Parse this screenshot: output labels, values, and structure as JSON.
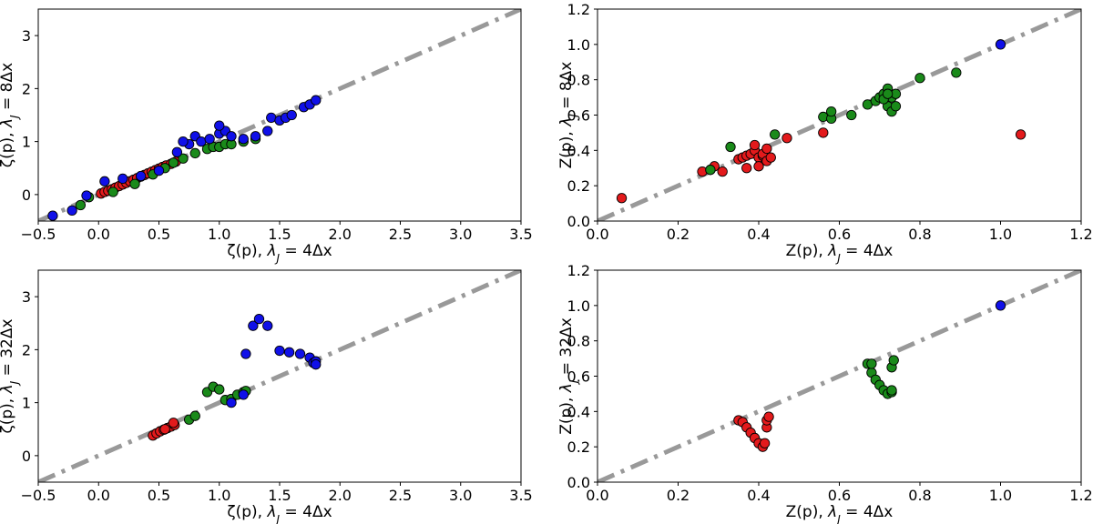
{
  "chart_data": [
    {
      "type": "scatter",
      "xlabel": "ζ(p), λJ = 4Δx",
      "ylabel": "ζ(p), λJ = 8Δx",
      "xlabel_parts": [
        "ζ(p), ",
        "λ",
        "J",
        " = 4Δx"
      ],
      "ylabel_parts": [
        "ζ(p), ",
        "λ",
        "J",
        " = 8Δx"
      ],
      "xlim": [
        -0.5,
        3.5
      ],
      "ylim": [
        -0.5,
        3.5
      ],
      "xticks": [
        "−0.5",
        "0.0",
        "0.5",
        "1.0",
        "1.5",
        "2.0",
        "2.5",
        "3.0",
        "3.5"
      ],
      "yticks": [
        "0",
        "1",
        "2",
        "3"
      ],
      "colors": {
        "red": "#e31a1c",
        "green": "#1a8a1a",
        "blue": "#1010e8",
        "line": "#999999"
      },
      "series": [
        {
          "name": "red",
          "color": "red",
          "points": [
            [
              0.02,
              0.02
            ],
            [
              0.05,
              0.05
            ],
            [
              0.08,
              0.07
            ],
            [
              0.11,
              0.1
            ],
            [
              0.14,
              0.13
            ],
            [
              0.17,
              0.16
            ],
            [
              0.2,
              0.19
            ],
            [
              0.23,
              0.22
            ],
            [
              0.26,
              0.25
            ],
            [
              0.29,
              0.28
            ],
            [
              0.32,
              0.31
            ],
            [
              0.35,
              0.34
            ],
            [
              0.38,
              0.37
            ],
            [
              0.41,
              0.4
            ],
            [
              0.44,
              0.43
            ],
            [
              0.47,
              0.46
            ],
            [
              0.5,
              0.49
            ],
            [
              0.53,
              0.52
            ],
            [
              0.56,
              0.55
            ],
            [
              0.6,
              0.58
            ],
            [
              0.64,
              0.62
            ]
          ]
        },
        {
          "name": "green",
          "color": "green",
          "points": [
            [
              -0.15,
              -0.2
            ],
            [
              -0.08,
              -0.05
            ],
            [
              0.12,
              0.05
            ],
            [
              0.3,
              0.2
            ],
            [
              0.45,
              0.38
            ],
            [
              0.55,
              0.5
            ],
            [
              0.62,
              0.6
            ],
            [
              0.7,
              0.68
            ],
            [
              0.8,
              0.78
            ],
            [
              0.9,
              0.86
            ],
            [
              0.95,
              0.9
            ],
            [
              1.0,
              0.9
            ],
            [
              1.05,
              0.95
            ],
            [
              1.1,
              0.95
            ],
            [
              1.2,
              1.0
            ],
            [
              1.3,
              1.05
            ]
          ]
        },
        {
          "name": "blue",
          "color": "blue",
          "points": [
            [
              -0.38,
              -0.4
            ],
            [
              -0.22,
              -0.3
            ],
            [
              -0.1,
              -0.02
            ],
            [
              0.05,
              0.25
            ],
            [
              0.2,
              0.3
            ],
            [
              0.35,
              0.35
            ],
            [
              0.5,
              0.45
            ],
            [
              0.65,
              0.8
            ],
            [
              0.75,
              0.95
            ],
            [
              0.8,
              1.1
            ],
            [
              0.85,
              1.0
            ],
            [
              0.92,
              1.05
            ],
            [
              1.0,
              1.15
            ],
            [
              1.05,
              1.2
            ],
            [
              1.1,
              1.1
            ],
            [
              1.2,
              1.05
            ],
            [
              1.3,
              1.1
            ],
            [
              1.4,
              1.2
            ],
            [
              1.43,
              1.45
            ],
            [
              1.5,
              1.4
            ],
            [
              1.55,
              1.45
            ],
            [
              1.6,
              1.5
            ],
            [
              1.7,
              1.65
            ],
            [
              1.75,
              1.7
            ],
            [
              1.8,
              1.78
            ],
            [
              1.0,
              1.3
            ],
            [
              0.7,
              1.0
            ]
          ]
        }
      ]
    },
    {
      "type": "scatter",
      "xlabel": "Z(p), λJ = 4Δx",
      "ylabel": "Z(p), λJ = 8Δx",
      "xlabel_parts": [
        "Z(p), ",
        "λ",
        "J",
        " = 4Δx"
      ],
      "ylabel_parts": [
        "Z(p), ",
        "λ",
        "J",
        " = 8Δx"
      ],
      "xlim": [
        0.0,
        1.2
      ],
      "ylim": [
        0.0,
        1.2
      ],
      "xticks": [
        "0.0",
        "0.2",
        "0.4",
        "0.6",
        "0.8",
        "1.0",
        "1.2"
      ],
      "yticks": [
        "0.0",
        "0.2",
        "0.4",
        "0.6",
        "0.8",
        "1.0",
        "1.2"
      ],
      "series": [
        {
          "name": "red",
          "color": "red",
          "points": [
            [
              0.06,
              0.13
            ],
            [
              0.26,
              0.28
            ],
            [
              0.28,
              0.29
            ],
            [
              0.29,
              0.31
            ],
            [
              0.31,
              0.28
            ],
            [
              0.35,
              0.35
            ],
            [
              0.36,
              0.36
            ],
            [
              0.37,
              0.37
            ],
            [
              0.37,
              0.3
            ],
            [
              0.38,
              0.38
            ],
            [
              0.39,
              0.4
            ],
            [
              0.39,
              0.43
            ],
            [
              0.4,
              0.36
            ],
            [
              0.4,
              0.31
            ],
            [
              0.41,
              0.37
            ],
            [
              0.41,
              0.38
            ],
            [
              0.42,
              0.41
            ],
            [
              0.42,
              0.34
            ],
            [
              0.43,
              0.36
            ],
            [
              0.47,
              0.47
            ],
            [
              0.56,
              0.5
            ],
            [
              1.05,
              0.49
            ]
          ]
        },
        {
          "name": "green",
          "color": "green",
          "points": [
            [
              0.28,
              0.29
            ],
            [
              0.33,
              0.42
            ],
            [
              0.44,
              0.49
            ],
            [
              0.56,
              0.59
            ],
            [
              0.58,
              0.58
            ],
            [
              0.58,
              0.62
            ],
            [
              0.63,
              0.6
            ],
            [
              0.67,
              0.66
            ],
            [
              0.69,
              0.68
            ],
            [
              0.7,
              0.7
            ],
            [
              0.71,
              0.72
            ],
            [
              0.72,
              0.65
            ],
            [
              0.72,
              0.75
            ],
            [
              0.73,
              0.62
            ],
            [
              0.73,
              0.7
            ],
            [
              0.74,
              0.72
            ],
            [
              0.74,
              0.65
            ],
            [
              0.8,
              0.81
            ],
            [
              0.89,
              0.84
            ],
            [
              0.71,
              0.69
            ],
            [
              0.72,
              0.72
            ]
          ]
        },
        {
          "name": "blue",
          "color": "blue",
          "points": [
            [
              1.0,
              1.0
            ]
          ]
        }
      ]
    },
    {
      "type": "scatter",
      "xlabel": "ζ(p), λJ = 4Δx",
      "ylabel": "ζ(p), λJ = 32Δx",
      "xlabel_parts": [
        "ζ(p), ",
        "λ",
        "J",
        " = 4Δx"
      ],
      "ylabel_parts": [
        "ζ(p), ",
        "λ",
        "J",
        " = 32Δx"
      ],
      "xlim": [
        -0.5,
        3.5
      ],
      "ylim": [
        -0.5,
        3.5
      ],
      "xticks": [
        "−0.5",
        "0.0",
        "0.5",
        "1.0",
        "1.5",
        "2.0",
        "2.5",
        "3.0",
        "3.5"
      ],
      "yticks": [
        "0",
        "1",
        "2",
        "3"
      ],
      "series": [
        {
          "name": "red",
          "color": "red",
          "points": [
            [
              0.45,
              0.38
            ],
            [
              0.48,
              0.42
            ],
            [
              0.51,
              0.46
            ],
            [
              0.54,
              0.49
            ],
            [
              0.57,
              0.52
            ],
            [
              0.6,
              0.55
            ],
            [
              0.63,
              0.58
            ],
            [
              0.62,
              0.62
            ],
            [
              0.55,
              0.5
            ]
          ]
        },
        {
          "name": "green",
          "color": "green",
          "points": [
            [
              0.75,
              0.68
            ],
            [
              0.8,
              0.75
            ],
            [
              0.9,
              1.2
            ],
            [
              0.95,
              1.3
            ],
            [
              1.0,
              1.25
            ],
            [
              1.05,
              1.05
            ],
            [
              1.1,
              1.07
            ],
            [
              1.15,
              1.15
            ],
            [
              1.2,
              1.2
            ],
            [
              1.22,
              1.22
            ]
          ]
        },
        {
          "name": "blue",
          "color": "blue",
          "points": [
            [
              1.1,
              1.0
            ],
            [
              1.2,
              1.15
            ],
            [
              1.22,
              1.92
            ],
            [
              1.28,
              2.45
            ],
            [
              1.33,
              2.58
            ],
            [
              1.4,
              2.45
            ],
            [
              1.5,
              1.98
            ],
            [
              1.58,
              1.95
            ],
            [
              1.67,
              1.92
            ],
            [
              1.75,
              1.85
            ],
            [
              1.78,
              1.75
            ],
            [
              1.8,
              1.78
            ],
            [
              1.8,
              1.72
            ]
          ]
        }
      ]
    },
    {
      "type": "scatter",
      "xlabel": "Z(p), λJ = 4Δx",
      "ylabel": "Z(p), λJ = 32Δx",
      "xlabel_parts": [
        "Z(p), ",
        "λ",
        "J",
        " = 4Δx"
      ],
      "ylabel_parts": [
        "Z(p), ",
        "λ",
        "J",
        " = 32Δx"
      ],
      "xlim": [
        0.0,
        1.2
      ],
      "ylim": [
        0.0,
        1.2
      ],
      "xticks": [
        "0.0",
        "0.2",
        "0.4",
        "0.6",
        "0.8",
        "1.0",
        "1.2"
      ],
      "yticks": [
        "0.0",
        "0.2",
        "0.4",
        "0.6",
        "0.8",
        "1.0",
        "1.2"
      ],
      "series": [
        {
          "name": "red",
          "color": "red",
          "points": [
            [
              0.35,
              0.35
            ],
            [
              0.36,
              0.34
            ],
            [
              0.37,
              0.31
            ],
            [
              0.38,
              0.28
            ],
            [
              0.39,
              0.25
            ],
            [
              0.4,
              0.22
            ],
            [
              0.41,
              0.2
            ],
            [
              0.415,
              0.22
            ],
            [
              0.42,
              0.31
            ],
            [
              0.42,
              0.35
            ],
            [
              0.425,
              0.37
            ]
          ]
        },
        {
          "name": "green",
          "color": "green",
          "points": [
            [
              0.67,
              0.67
            ],
            [
              0.68,
              0.62
            ],
            [
              0.69,
              0.58
            ],
            [
              0.7,
              0.55
            ],
            [
              0.71,
              0.52
            ],
            [
              0.72,
              0.5
            ],
            [
              0.73,
              0.51
            ],
            [
              0.73,
              0.52
            ],
            [
              0.73,
              0.65
            ],
            [
              0.735,
              0.69
            ],
            [
              0.68,
              0.67
            ]
          ]
        },
        {
          "name": "blue",
          "color": "blue",
          "points": [
            [
              1.0,
              1.0
            ]
          ]
        }
      ]
    }
  ]
}
